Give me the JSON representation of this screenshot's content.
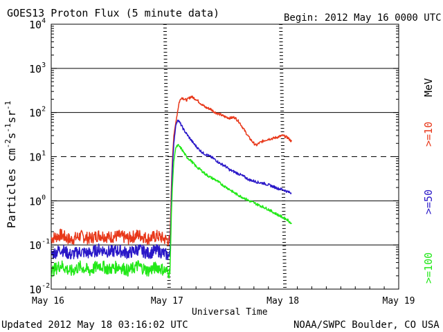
{
  "chart_data": {
    "type": "line",
    "title": "GOES13 Proton Flux (5 minute data)",
    "begin": "Begin: 2012 May 16 0000 UTC",
    "updated": "Updated 2012 May 18 03:16:02 UTC",
    "credit": "NOAA/SWPC Boulder, CO USA",
    "xlabel": "Universal Time",
    "ylabel": {
      "base": "Particles cm",
      "e1": "-2",
      "mid1": "s",
      "e2": "-1",
      "mid2": "sr",
      "e3": "-1"
    },
    "xlim_hours": [
      0,
      72
    ],
    "ylim_log10": [
      -2,
      4
    ],
    "x_ticks": [
      {
        "hour": 0,
        "label": "May 16"
      },
      {
        "hour": 24,
        "label": "May 17"
      },
      {
        "hour": 48,
        "label": "May 18"
      },
      {
        "hour": 72,
        "label": "May 19"
      }
    ],
    "y_ticks": [
      {
        "exp": -2,
        "base": "10",
        "sup": "-2"
      },
      {
        "exp": -1,
        "base": "10",
        "sup": "-1"
      },
      {
        "exp": 0,
        "base": "10",
        "sup": "0"
      },
      {
        "exp": 1,
        "base": "10",
        "sup": "1"
      },
      {
        "exp": 2,
        "base": "10",
        "sup": "2"
      },
      {
        "exp": 3,
        "base": "10",
        "sup": "3"
      },
      {
        "exp": 4,
        "base": "10",
        "sup": "4"
      }
    ],
    "threshold_lines": [
      {
        "exp": -1,
        "style": "solid"
      },
      {
        "exp": 0,
        "style": "solid"
      },
      {
        "exp": 1,
        "style": "dashed"
      },
      {
        "exp": 2,
        "style": "solid"
      },
      {
        "exp": 3,
        "style": "solid"
      }
    ],
    "unit_label": "MeV",
    "series": [
      {
        "name": ">=10",
        "color": "#e8381a",
        "points": [
          [
            0,
            0.14
          ],
          [
            2,
            0.17
          ],
          [
            4,
            0.13
          ],
          [
            6,
            0.16
          ],
          [
            8,
            0.14
          ],
          [
            10,
            0.17
          ],
          [
            12,
            0.15
          ],
          [
            14,
            0.16
          ],
          [
            16,
            0.14
          ],
          [
            18,
            0.17
          ],
          [
            20,
            0.14
          ],
          [
            22,
            0.16
          ],
          [
            24,
            0.13
          ],
          [
            24.6,
            0.12
          ],
          [
            24.9,
            2
          ],
          [
            25.1,
            8
          ],
          [
            25.4,
            30
          ],
          [
            26,
            80
          ],
          [
            26.5,
            170
          ],
          [
            27,
            220
          ],
          [
            28,
            190
          ],
          [
            29,
            230
          ],
          [
            30,
            200
          ],
          [
            31,
            160
          ],
          [
            32,
            130
          ],
          [
            33,
            120
          ],
          [
            34,
            100
          ],
          [
            35,
            90
          ],
          [
            36,
            80
          ],
          [
            37,
            75
          ],
          [
            38,
            78
          ],
          [
            39,
            60
          ],
          [
            40,
            40
          ],
          [
            41,
            27
          ],
          [
            42,
            20
          ],
          [
            42.5,
            18
          ],
          [
            43,
            20
          ],
          [
            44,
            23
          ],
          [
            45,
            25
          ],
          [
            46,
            26
          ],
          [
            47,
            28
          ],
          [
            48,
            30
          ],
          [
            49,
            27
          ],
          [
            49.8,
            22
          ]
        ]
      },
      {
        "name": ">=50",
        "color": "#2a18c8",
        "points": [
          [
            0,
            0.06
          ],
          [
            2,
            0.08
          ],
          [
            4,
            0.06
          ],
          [
            6,
            0.07
          ],
          [
            8,
            0.065
          ],
          [
            10,
            0.08
          ],
          [
            12,
            0.07
          ],
          [
            14,
            0.075
          ],
          [
            16,
            0.065
          ],
          [
            18,
            0.08
          ],
          [
            20,
            0.065
          ],
          [
            22,
            0.075
          ],
          [
            24,
            0.06
          ],
          [
            24.6,
            0.055
          ],
          [
            24.9,
            1
          ],
          [
            25.1,
            5
          ],
          [
            25.4,
            20
          ],
          [
            25.8,
            50
          ],
          [
            26.2,
            70
          ],
          [
            26.8,
            55
          ],
          [
            27.5,
            40
          ],
          [
            28.5,
            28
          ],
          [
            29.5,
            20
          ],
          [
            30.5,
            15
          ],
          [
            31.5,
            12
          ],
          [
            33,
            10
          ],
          [
            34,
            8.5
          ],
          [
            35,
            7
          ],
          [
            36,
            6.2
          ],
          [
            37,
            5
          ],
          [
            38,
            4.5
          ],
          [
            39,
            4
          ],
          [
            40,
            3.5
          ],
          [
            41,
            3
          ],
          [
            42,
            2.8
          ],
          [
            43,
            2.6
          ],
          [
            44,
            2.5
          ],
          [
            45,
            2.3
          ],
          [
            46,
            2.1
          ],
          [
            47,
            1.9
          ],
          [
            48,
            1.8
          ],
          [
            49,
            1.6
          ],
          [
            49.8,
            1.5
          ]
        ]
      },
      {
        "name": ">=100",
        "color": "#22e818",
        "points": [
          [
            0,
            0.025
          ],
          [
            2,
            0.035
          ],
          [
            4,
            0.025
          ],
          [
            6,
            0.032
          ],
          [
            8,
            0.026
          ],
          [
            10,
            0.035
          ],
          [
            12,
            0.028
          ],
          [
            14,
            0.033
          ],
          [
            16,
            0.026
          ],
          [
            18,
            0.034
          ],
          [
            20,
            0.026
          ],
          [
            22,
            0.032
          ],
          [
            24,
            0.025
          ],
          [
            24.6,
            0.023
          ],
          [
            24.9,
            0.5
          ],
          [
            25.1,
            2
          ],
          [
            25.4,
            8
          ],
          [
            25.8,
            16
          ],
          [
            26.3,
            18
          ],
          [
            27,
            15
          ],
          [
            28,
            10
          ],
          [
            29,
            8
          ],
          [
            30,
            6
          ],
          [
            31,
            5
          ],
          [
            32,
            4
          ],
          [
            33,
            3.4
          ],
          [
            34,
            3
          ],
          [
            35,
            2.5
          ],
          [
            36,
            2.1
          ],
          [
            37,
            1.8
          ],
          [
            38,
            1.5
          ],
          [
            39,
            1.3
          ],
          [
            40,
            1.15
          ],
          [
            41,
            1
          ],
          [
            42,
            0.9
          ],
          [
            43,
            0.8
          ],
          [
            44,
            0.72
          ],
          [
            45,
            0.64
          ],
          [
            46,
            0.55
          ],
          [
            47,
            0.48
          ],
          [
            48,
            0.42
          ],
          [
            49,
            0.37
          ],
          [
            49.8,
            0.3
          ]
        ]
      }
    ]
  }
}
